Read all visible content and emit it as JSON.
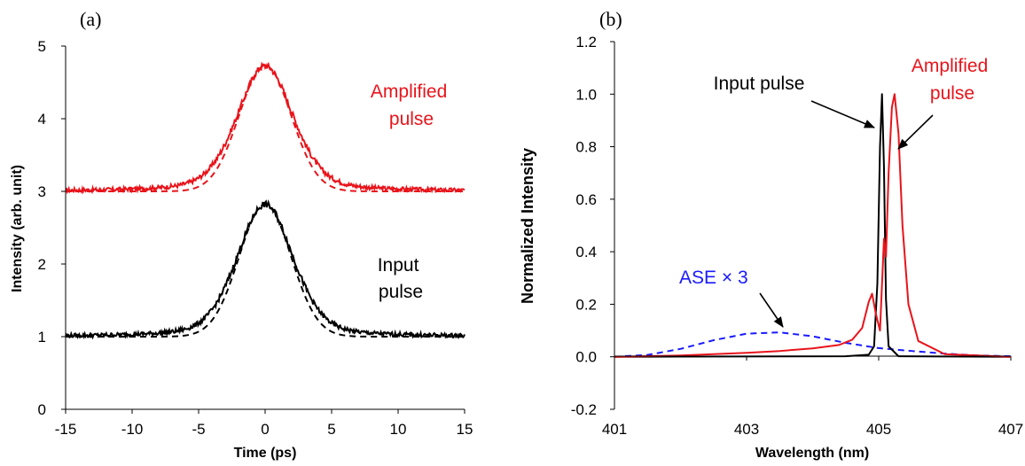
{
  "chart_data": [
    {
      "type": "line",
      "panel_label": "(a)",
      "xlabel": "Time (ps)",
      "ylabel": "Intensity (arb. unit)",
      "xlim": [
        -15,
        15
      ],
      "ylim": [
        0,
        5
      ],
      "xticks": [
        "-15",
        "-10",
        "-5",
        "0",
        "5",
        "10",
        "15"
      ],
      "yticks": [
        "0",
        "1",
        "2",
        "3",
        "4",
        "5"
      ],
      "grid": false,
      "series": [
        {
          "name": "Amplified pulse",
          "role": "measured",
          "color": "#e8141b",
          "style": "solid",
          "baseline": 3.0,
          "peak": 4.73,
          "fwhm": 5.0,
          "wing": 0.33
        },
        {
          "name": "Amplified pulse",
          "role": "fit",
          "color": "#e8141b",
          "style": "dashed",
          "baseline": 3.0,
          "peak": 4.73,
          "fwhm": 4.6,
          "wing": 0.0
        },
        {
          "name": "Input pulse",
          "role": "measured",
          "color": "#000000",
          "style": "solid",
          "baseline": 1.0,
          "peak": 2.82,
          "fwhm": 5.0,
          "wing": 0.3
        },
        {
          "name": "Input pulse",
          "role": "fit",
          "color": "#000000",
          "style": "dashed",
          "baseline": 1.0,
          "peak": 2.82,
          "fwhm": 4.6,
          "wing": 0.0
        }
      ],
      "annotations": [
        {
          "lines": [
            "Amplified",
            "pulse"
          ],
          "color": "#e8141b"
        },
        {
          "lines": [
            "Input",
            "pulse"
          ],
          "color": "#000000"
        }
      ]
    },
    {
      "type": "line",
      "panel_label": "(b)",
      "xlabel": "Wavelength (nm)",
      "ylabel": "Normalized Intensity",
      "xlim": [
        401,
        407
      ],
      "ylim": [
        -0.2,
        1.2
      ],
      "xticks": [
        "401",
        "403",
        "405",
        "407"
      ],
      "yticks": [
        "-0.2",
        "0.0",
        "0.2",
        "0.4",
        "0.6",
        "0.8",
        "1.0",
        "1.2"
      ],
      "grid": false,
      "series": [
        {
          "name": "ASE ×3",
          "color": "#1a1aff",
          "style": "dashed",
          "x": [
            401,
            401.5,
            402,
            402.5,
            403,
            403.5,
            404,
            404.5,
            405,
            405.5,
            406,
            406.5,
            407
          ],
          "y": [
            0.0,
            0.007,
            0.03,
            0.063,
            0.088,
            0.093,
            0.078,
            0.053,
            0.033,
            0.022,
            0.012,
            0.005,
            0.002
          ]
        },
        {
          "name": "Input pulse",
          "color": "#000000",
          "style": "solid",
          "x": [
            401,
            404.5,
            404.85,
            404.93,
            404.98,
            405.02,
            405.05,
            405.08,
            405.11,
            405.15,
            405.3,
            407
          ],
          "y": [
            0.0,
            0.002,
            0.008,
            0.04,
            0.28,
            0.8,
            1.0,
            0.72,
            0.22,
            0.04,
            0.002,
            0.0
          ]
        },
        {
          "name": "Amplified pulse",
          "color": "#e8141b",
          "style": "solid",
          "x": [
            401,
            402,
            403,
            403.5,
            404,
            404.4,
            404.6,
            404.75,
            404.85,
            404.9,
            404.96,
            405.02,
            405.08,
            405.11,
            405.15,
            405.2,
            405.24,
            405.3,
            405.36,
            405.45,
            405.6,
            406,
            407
          ],
          "y": [
            0.0,
            0.005,
            0.015,
            0.022,
            0.032,
            0.045,
            0.065,
            0.11,
            0.21,
            0.24,
            0.16,
            0.1,
            0.45,
            0.38,
            0.7,
            0.95,
            1.0,
            0.85,
            0.5,
            0.2,
            0.06,
            0.01,
            0.0
          ]
        }
      ],
      "annotations": [
        {
          "lines": [
            "Input pulse"
          ],
          "color": "#000000"
        },
        {
          "lines": [
            "Amplified",
            "pulse"
          ],
          "color": "#e8141b"
        },
        {
          "lines": [
            "ASE  × 3"
          ],
          "color": "#1a1aff"
        }
      ]
    }
  ]
}
